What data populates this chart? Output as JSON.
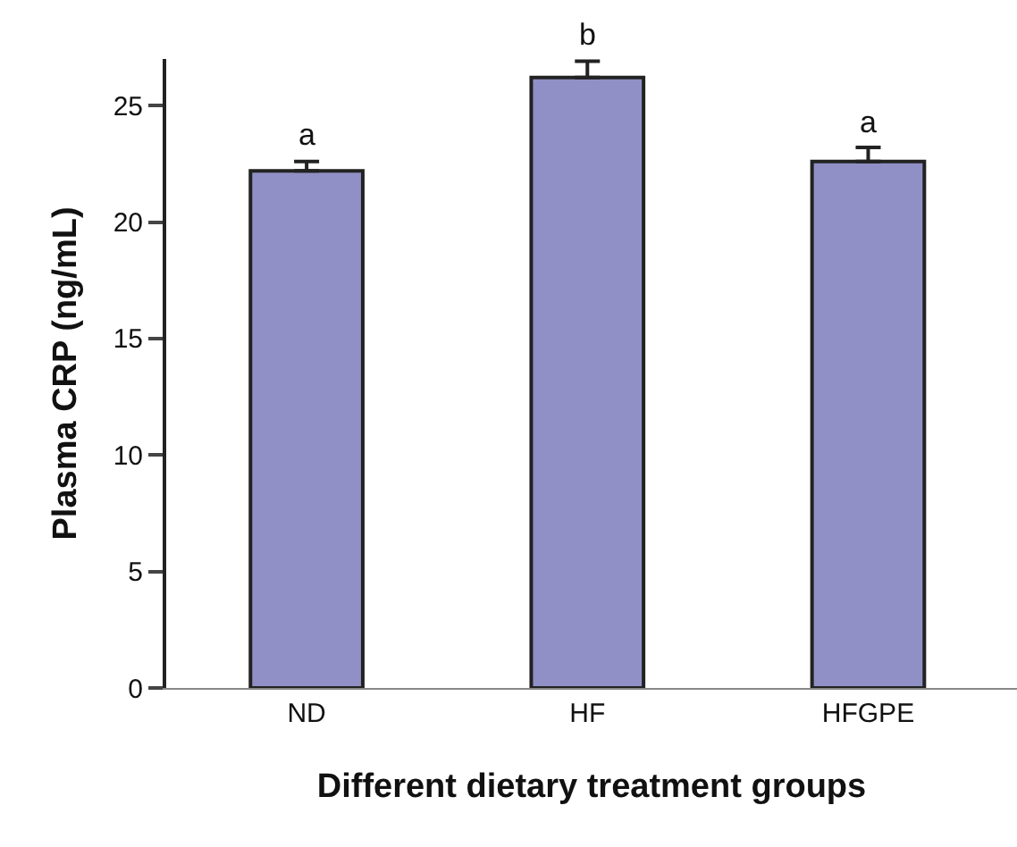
{
  "chart_data": {
    "type": "bar",
    "xlabel": "Different dietary treatment groups",
    "ylabel": "Plasma CRP (ng/mL)",
    "categories": [
      "ND",
      "HF",
      "HFGPE"
    ],
    "values": [
      22.2,
      26.2,
      22.6
    ],
    "errors": [
      [
        22.2,
        22.6
      ],
      [
        26.2,
        26.9
      ],
      [
        22.6,
        23.2
      ]
    ],
    "color": "#9090c6",
    "ylim": [
      0,
      27
    ],
    "yticks": [
      0,
      5,
      10,
      15,
      20,
      25
    ],
    "annotations": [
      {
        "text": "a",
        "x": "ND",
        "y": 22.6
      },
      {
        "text": "b",
        "x": "HF",
        "y": 26.9
      },
      {
        "text": "a",
        "x": "HFGPE",
        "y": 23.2
      }
    ]
  }
}
